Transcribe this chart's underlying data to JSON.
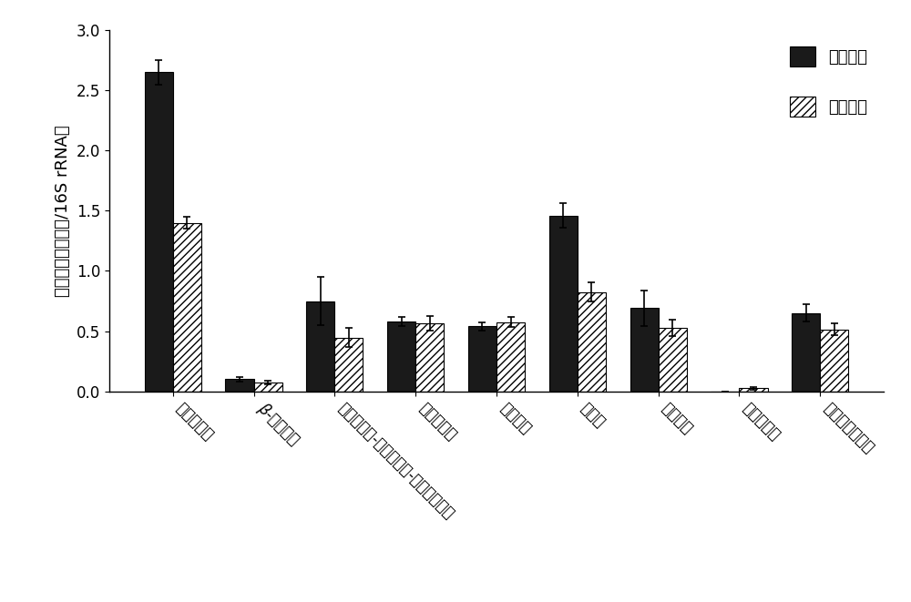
{
  "categories": [
    "氨基糖苷类",
    "β-内酰胺类",
    "大环内酯类-林肯酰胺类-链阳性菌素类",
    "多重抗药类",
    "氯霉素类",
    "磺胺类",
    "四环素类",
    "万古霉素类",
    "可移动遗传元件"
  ],
  "initial_values": [
    2.65,
    0.1,
    0.75,
    0.58,
    0.54,
    1.46,
    0.69,
    0.0,
    0.65
  ],
  "treated_values": [
    1.4,
    0.075,
    0.445,
    0.565,
    0.575,
    0.825,
    0.525,
    0.025,
    0.515
  ],
  "initial_errors": [
    0.1,
    0.02,
    0.2,
    0.04,
    0.035,
    0.1,
    0.15,
    0.0,
    0.07
  ],
  "treated_errors": [
    0.05,
    0.015,
    0.08,
    0.06,
    0.04,
    0.08,
    0.07,
    0.01,
    0.05
  ],
  "ylabel": "相对丰度（拷贝数/16S rRNA）",
  "ylim": [
    0,
    3.0
  ],
  "yticks": [
    0,
    0.5,
    1.0,
    1.5,
    2.0,
    2.5,
    3.0
  ],
  "legend_labels": [
    "初始土壤",
    "处理土壤"
  ],
  "bar_width": 0.35,
  "initial_color": "#1a1a1a",
  "treated_color": "#ffffff",
  "hatch_pattern": "////",
  "font_size": 13,
  "tick_fontsize": 12,
  "label_rotation": -45,
  "label_ha": "left"
}
